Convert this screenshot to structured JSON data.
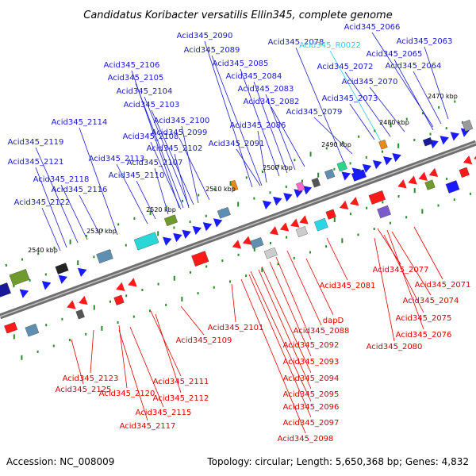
{
  "title": "Candidatus Koribacter versatilis Ellin345, complete genome",
  "footer": {
    "accession": "Accession: NC_008009",
    "info": "Topology: circular; Length: 5,650,368 bp; Genes: 4,832"
  },
  "colors": {
    "background": "#ffffff",
    "axis": "#888888",
    "tick": "#2a8a2a",
    "forward_gene": "#1a1aff",
    "reverse_gene": "#ff1a1a",
    "upper_label": "#1a1acc",
    "lower_label": "#e00000",
    "rna_label": "#3cc8e6"
  },
  "kbp_ticks": [
    "2470 kbp",
    "2480 kbp",
    "2490 kbp",
    "2500 kbp",
    "2510 kbp",
    "2520 kbp",
    "2530 kbp",
    "2540 kbp"
  ],
  "upper_labels": [
    {
      "text": "Acid345_2090"
    },
    {
      "text": "Acid345_2066"
    },
    {
      "text": "Acid345_2078"
    },
    {
      "text": "Acid345_R0022",
      "rna": true
    },
    {
      "text": "Acid345_2063"
    },
    {
      "text": "Acid345_2089"
    },
    {
      "text": "Acid345_2065"
    },
    {
      "text": "Acid345_2106"
    },
    {
      "text": "Acid345_2085"
    },
    {
      "text": "Acid345_2072"
    },
    {
      "text": "Acid345_2064"
    },
    {
      "text": "Acid345_2105"
    },
    {
      "text": "Acid345_2084"
    },
    {
      "text": "Acid345_2070"
    },
    {
      "text": "Acid345_2104"
    },
    {
      "text": "Acid345_2083"
    },
    {
      "text": "Acid345_2073"
    },
    {
      "text": "Acid345_2103"
    },
    {
      "text": "Acid345_2082"
    },
    {
      "text": "Acid345_2079"
    },
    {
      "text": "Acid345_2100"
    },
    {
      "text": "Acid345_2114"
    },
    {
      "text": "Acid345_2086"
    },
    {
      "text": "Acid345_2099"
    },
    {
      "text": "Acid345_2108"
    },
    {
      "text": "Acid345_2119"
    },
    {
      "text": "Acid345_2091"
    },
    {
      "text": "Acid345_2102"
    },
    {
      "text": "Acid345_2113"
    },
    {
      "text": "Acid345_2121"
    },
    {
      "text": "Acid345_2107"
    },
    {
      "text": "Acid345_2110"
    },
    {
      "text": "Acid345_2118"
    },
    {
      "text": "Acid345_2116"
    },
    {
      "text": "Acid345_2122"
    }
  ],
  "lower_labels": [
    {
      "text": "Acid345_2077"
    },
    {
      "text": "Acid345_2081"
    },
    {
      "text": "Acid345_2071"
    },
    {
      "text": "Acid345_2074"
    },
    {
      "text": "dapD"
    },
    {
      "text": "Acid345_2075"
    },
    {
      "text": "Acid345_2101"
    },
    {
      "text": "Acid345_2088"
    },
    {
      "text": "Acid345_2076"
    },
    {
      "text": "Acid345_2109"
    },
    {
      "text": "Acid345_2092"
    },
    {
      "text": "Acid345_2080"
    },
    {
      "text": "Acid345_2093"
    },
    {
      "text": "Acid345_2123"
    },
    {
      "text": "Acid345_2111"
    },
    {
      "text": "Acid345_2094"
    },
    {
      "text": "Acid345_2125"
    },
    {
      "text": "Acid345_2120"
    },
    {
      "text": "Acid345_2095"
    },
    {
      "text": "Acid345_2112"
    },
    {
      "text": "Acid345_2096"
    },
    {
      "text": "Acid345_2115"
    },
    {
      "text": "Acid345_2097"
    },
    {
      "text": "Acid345_2117"
    },
    {
      "text": "Acid345_2098"
    }
  ]
}
